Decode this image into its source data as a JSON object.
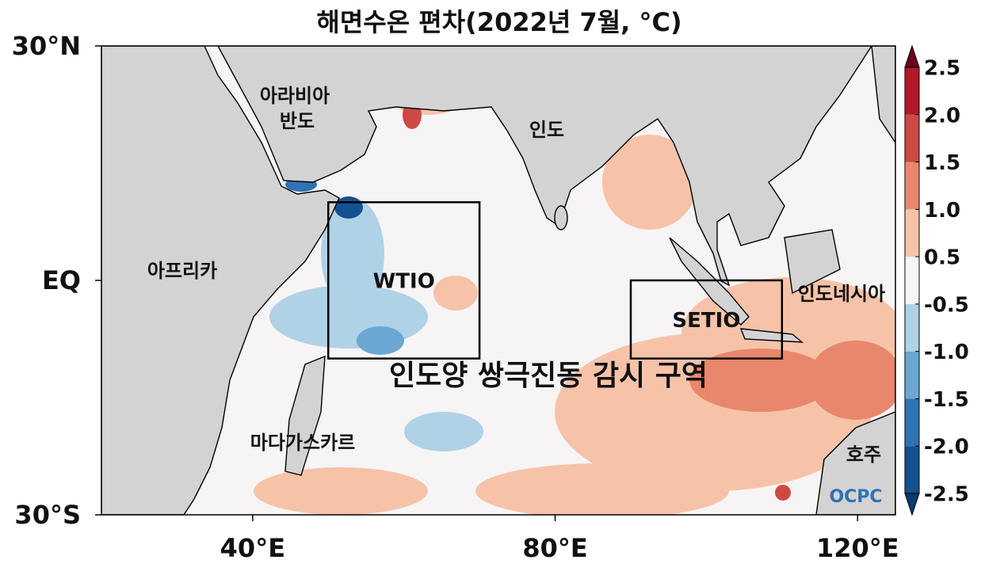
{
  "title": "해면수온 편차(2022년 7월, °C)",
  "map": {
    "xlim": [
      20,
      125
    ],
    "ylim": [
      -30,
      30
    ],
    "xticks": [
      {
        "value": 40,
        "label": "40°E"
      },
      {
        "value": 80,
        "label": "80°E"
      },
      {
        "value": 120,
        "label": "120°E"
      }
    ],
    "yticks": [
      {
        "value": 30,
        "label": "30°N"
      },
      {
        "value": 0,
        "label": "EQ"
      },
      {
        "value": -30,
        "label": "30°S"
      }
    ],
    "regions": [
      {
        "name": "WTIO",
        "lon": [
          50,
          70
        ],
        "lat": [
          -10,
          10
        ]
      },
      {
        "name": "SETIO",
        "lon": [
          90,
          110
        ],
        "lat": [
          -10,
          0
        ]
      }
    ],
    "region_title": "인도양 쌍극진동 감시 구역",
    "places": {
      "arabia": [
        "아라비아",
        "반도"
      ],
      "india": "인도",
      "africa": "아프리카",
      "indonesia": "인도네시아",
      "madagascar": "마다가스카르",
      "australia": "호주"
    },
    "logo": "OCPC"
  },
  "colorbar": {
    "ticks": [
      -2.5,
      {
        "value": -2,
        "label": "-2.0"
      },
      -1.5,
      {
        "value": -1,
        "label": "-1.0"
      },
      -0.5,
      0.5,
      {
        "value": 1,
        "label": "1.0"
      },
      1.5,
      {
        "value": 2,
        "label": "2.0"
      },
      2.5
    ],
    "colors": [
      "#083b6e",
      "#15508f",
      "#2f73b3",
      "#6aa8d2",
      "#afd2e7",
      "#f7f4f5",
      "#f6c3a9",
      "#e8876b",
      "#cc4a43",
      "#b01a2b",
      "#6b0420"
    ]
  }
}
